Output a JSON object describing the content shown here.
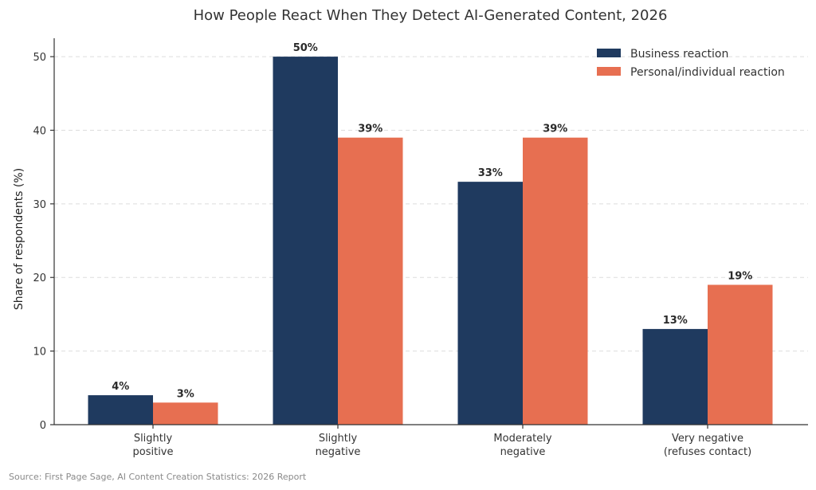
{
  "chart_data": {
    "type": "bar",
    "title": "How People React When They Detect AI-Generated Content, 2026",
    "xlabel": "",
    "ylabel": "Share of respondents (%)",
    "categories": [
      [
        "Slightly",
        "positive"
      ],
      [
        "Slightly",
        "negative"
      ],
      [
        "Moderately",
        "negative"
      ],
      [
        "Very negative",
        "(refuses contact)"
      ]
    ],
    "series": [
      {
        "name": "Business reaction",
        "color": "#1f3a5f",
        "values": [
          4,
          50,
          33,
          13
        ],
        "labels": [
          "4%",
          "50%",
          "33%",
          "13%"
        ]
      },
      {
        "name": "Personal/individual reaction",
        "color": "#e76f51",
        "values": [
          3,
          39,
          39,
          19
        ],
        "labels": [
          "3%",
          "39%",
          "39%",
          "19%"
        ]
      }
    ],
    "ylim": [
      0,
      52.5
    ],
    "yticks": [
      0,
      10,
      20,
      30,
      40,
      50
    ],
    "grid": true,
    "legend_position": "top-right",
    "source": "Source: First Page Sage, AI Content Creation Statistics: 2026 Report"
  }
}
